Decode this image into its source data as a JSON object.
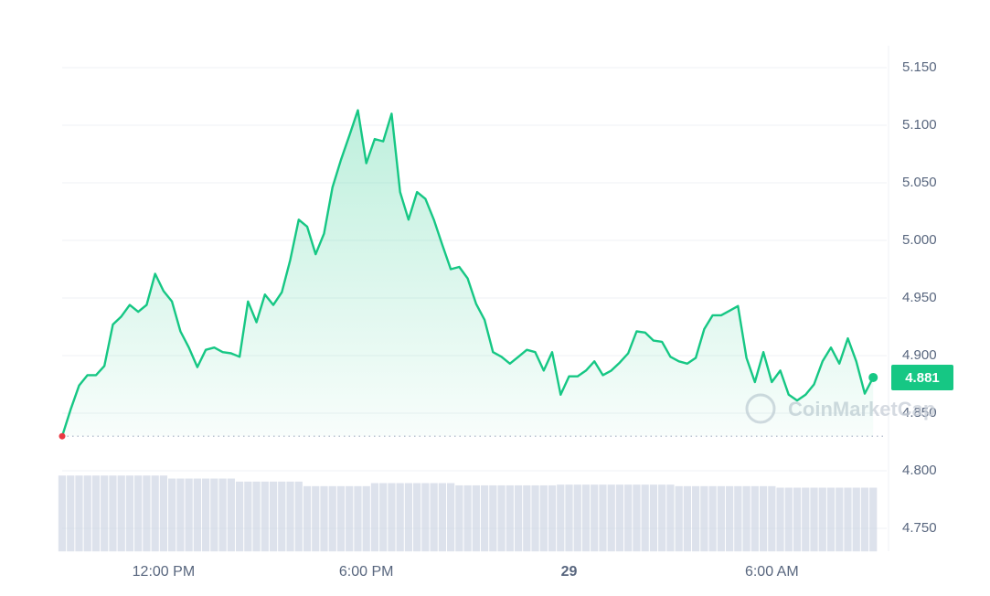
{
  "chart_data": {
    "type": "line",
    "watermark": "CoinMarketCap",
    "x": [
      9,
      9.25,
      9.5,
      9.75,
      10,
      10.25,
      10.5,
      10.75,
      11,
      11.25,
      11.5,
      11.75,
      12,
      12.25,
      12.5,
      12.75,
      13,
      13.25,
      13.5,
      13.75,
      14,
      14.25,
      14.5,
      14.75,
      15,
      15.25,
      15.5,
      15.75,
      16,
      16.25,
      16.5,
      16.75,
      17,
      17.25,
      17.5,
      17.75,
      18,
      18.25,
      18.5,
      18.75,
      19,
      19.25,
      19.5,
      19.75,
      20,
      20.25,
      20.5,
      20.75,
      21,
      21.25,
      21.5,
      21.75,
      22,
      22.25,
      22.5,
      22.75,
      23,
      23.25,
      23.5,
      23.75,
      24,
      24.25,
      24.5,
      24.75,
      25,
      25.25,
      25.5,
      25.75,
      26,
      26.25,
      26.5,
      26.75,
      27,
      27.25,
      27.5,
      27.75,
      28,
      28.25,
      28.5,
      28.75,
      29,
      29.25,
      29.5,
      29.75,
      30,
      30.25,
      30.5,
      30.75,
      31,
      31.25,
      31.5,
      31.75,
      32,
      32.25,
      32.5,
      32.75,
      33
    ],
    "series": [
      {
        "color": "#16c784",
        "start_color": "#ea3943",
        "values": [
          4.83,
          4.853,
          4.874,
          4.883,
          4.883,
          4.891,
          4.927,
          4.934,
          4.944,
          4.938,
          4.944,
          4.971,
          4.956,
          4.947,
          4.921,
          4.907,
          4.89,
          4.905,
          4.907,
          4.903,
          4.902,
          4.899,
          4.947,
          4.929,
          4.953,
          4.944,
          4.955,
          4.983,
          5.018,
          5.012,
          4.988,
          5.006,
          5.046,
          5.07,
          5.091,
          5.113,
          5.067,
          5.088,
          5.086,
          5.11,
          5.042,
          5.018,
          5.042,
          5.036,
          5.018,
          4.996,
          4.975,
          4.977,
          4.967,
          4.945,
          4.931,
          4.903,
          4.899,
          4.893,
          4.899,
          4.905,
          4.903,
          4.887,
          4.903,
          4.866,
          4.882,
          4.882,
          4.887,
          4.895,
          4.883,
          4.887,
          4.894,
          4.902,
          4.921,
          4.92,
          4.913,
          4.912,
          4.899,
          4.895,
          4.893,
          4.898,
          4.923,
          4.935,
          4.935,
          4.939,
          4.943,
          4.898,
          4.877,
          4.903,
          4.877,
          4.887,
          4.866,
          4.861,
          4.866,
          4.875,
          4.895,
          4.907,
          4.893,
          4.915,
          4.895,
          4.867,
          4.881
        ]
      }
    ],
    "volume": {
      "color": "#cfd6e4",
      "values": [
        100,
        100,
        100,
        100,
        100,
        100,
        100,
        100,
        100,
        100,
        100,
        100,
        100,
        96,
        96,
        96,
        96,
        96,
        96,
        96,
        96,
        92,
        92,
        92,
        92,
        92,
        92,
        92,
        92,
        86,
        86,
        86,
        86,
        86,
        86,
        86,
        86,
        90,
        90,
        90,
        90,
        90,
        90,
        90,
        90,
        90,
        90,
        87,
        87,
        87,
        87,
        87,
        87,
        87,
        87,
        87,
        87,
        87,
        87,
        88,
        88,
        88,
        88,
        88,
        88,
        88,
        88,
        88,
        88,
        88,
        88,
        88,
        88,
        86,
        86,
        86,
        86,
        86,
        86,
        86,
        86,
        86,
        86,
        86,
        86,
        84,
        84,
        84,
        84,
        84,
        84,
        84,
        84,
        84,
        84,
        84,
        84
      ]
    },
    "xlim": [
      9,
      33.4
    ],
    "xticks": [
      {
        "value": 12,
        "label": "12:00 PM"
      },
      {
        "value": 18,
        "label": "6:00 PM"
      },
      {
        "value": 24,
        "label": "29"
      },
      {
        "value": 30,
        "label": "6:00 AM"
      }
    ],
    "ylim": [
      4.73,
      5.17
    ],
    "yticks": [
      {
        "value": 4.75,
        "label": "4.750"
      },
      {
        "value": 4.8,
        "label": "4.800"
      },
      {
        "value": 4.85,
        "label": "4.850"
      },
      {
        "value": 4.9,
        "label": "4.900"
      },
      {
        "value": 4.95,
        "label": "4.950"
      },
      {
        "value": 5.0,
        "label": "5.000"
      },
      {
        "value": 5.05,
        "label": "5.050"
      },
      {
        "value": 5.1,
        "label": "5.100"
      },
      {
        "value": 5.15,
        "label": "5.150"
      }
    ],
    "grid": true
  }
}
